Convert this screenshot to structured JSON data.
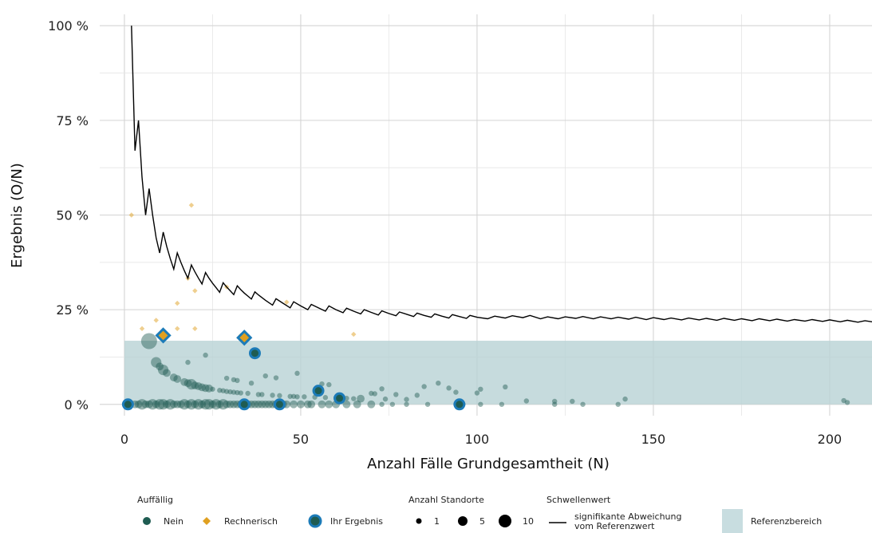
{
  "chart_data": {
    "type": "scatter",
    "xlabel": "Anzahl Fälle Grundgesamtheit (N)",
    "ylabel": "Ergebnis (O/N)",
    "xlim": [
      -7,
      212
    ],
    "ylim": [
      -3,
      103
    ],
    "x_ticks": [
      0,
      50,
      100,
      150,
      200
    ],
    "x_tick_labels": [
      "0",
      "50",
      "100",
      "150",
      "200"
    ],
    "y_ticks": [
      0,
      25,
      50,
      75,
      100
    ],
    "y_tick_labels": [
      "0 %",
      "25 %",
      "50 %",
      "75 %",
      "100 %"
    ],
    "grid": true,
    "reference_range": {
      "label": "Referenzbereich",
      "ymin": 0,
      "ymax": 16.8
    },
    "threshold_line": {
      "label": "signifikante Abweichung vom Referenzwert",
      "points": [
        [
          2,
          100
        ],
        [
          3,
          67
        ],
        [
          4,
          75
        ],
        [
          5,
          60
        ],
        [
          6,
          50
        ],
        [
          7,
          57
        ],
        [
          8,
          50
        ],
        [
          9,
          44
        ],
        [
          10,
          40
        ],
        [
          11,
          45.5
        ],
        [
          12,
          41.7
        ],
        [
          13,
          38.5
        ],
        [
          14,
          35.7
        ],
        [
          15,
          40
        ],
        [
          16,
          37.5
        ],
        [
          17,
          35.3
        ],
        [
          18,
          33.3
        ],
        [
          19,
          36.8
        ],
        [
          20,
          35
        ],
        [
          21,
          33.3
        ],
        [
          22,
          31.8
        ],
        [
          23,
          34.8
        ],
        [
          24,
          33.3
        ],
        [
          25,
          32
        ],
        [
          26,
          30.8
        ],
        [
          27,
          29.6
        ],
        [
          28,
          32.1
        ],
        [
          29,
          31
        ],
        [
          30,
          30
        ],
        [
          31,
          29
        ],
        [
          32,
          31.3
        ],
        [
          33,
          30.3
        ],
        [
          34,
          29.4
        ],
        [
          35,
          28.6
        ],
        [
          36,
          27.8
        ],
        [
          37,
          29.7
        ],
        [
          38,
          28.9
        ],
        [
          40,
          27.5
        ],
        [
          42,
          26.2
        ],
        [
          43,
          27.9
        ],
        [
          45,
          26.7
        ],
        [
          47,
          25.5
        ],
        [
          48,
          27.1
        ],
        [
          50,
          26
        ],
        [
          52,
          25
        ],
        [
          53,
          26.4
        ],
        [
          55,
          25.5
        ],
        [
          57,
          24.6
        ],
        [
          58,
          26
        ],
        [
          60,
          25
        ],
        [
          62,
          24.2
        ],
        [
          63,
          25.4
        ],
        [
          65,
          24.6
        ],
        [
          67,
          23.9
        ],
        [
          68,
          25
        ],
        [
          70,
          24.3
        ],
        [
          72,
          23.6
        ],
        [
          73,
          24.7
        ],
        [
          75,
          24
        ],
        [
          77,
          23.4
        ],
        [
          78,
          24.4
        ],
        [
          80,
          23.8
        ],
        [
          82,
          23.2
        ],
        [
          83,
          24.1
        ],
        [
          85,
          23.5
        ],
        [
          87,
          23
        ],
        [
          88,
          23.9
        ],
        [
          90,
          23.3
        ],
        [
          92,
          22.8
        ],
        [
          93,
          23.7
        ],
        [
          95,
          23.2
        ],
        [
          97,
          22.7
        ],
        [
          98,
          23.5
        ],
        [
          100,
          23
        ],
        [
          103,
          22.6
        ],
        [
          105,
          23.3
        ],
        [
          108,
          22.8
        ],
        [
          110,
          23.4
        ],
        [
          113,
          22.9
        ],
        [
          115,
          23.5
        ],
        [
          118,
          22.6
        ],
        [
          120,
          23.1
        ],
        [
          123,
          22.6
        ],
        [
          125,
          23.1
        ],
        [
          128,
          22.7
        ],
        [
          130,
          23.2
        ],
        [
          133,
          22.6
        ],
        [
          135,
          23.1
        ],
        [
          138,
          22.6
        ],
        [
          140,
          23
        ],
        [
          143,
          22.5
        ],
        [
          145,
          23
        ],
        [
          148,
          22.4
        ],
        [
          150,
          22.9
        ],
        [
          153,
          22.4
        ],
        [
          155,
          22.8
        ],
        [
          158,
          22.3
        ],
        [
          160,
          22.8
        ],
        [
          163,
          22.3
        ],
        [
          165,
          22.7
        ],
        [
          168,
          22.2
        ],
        [
          170,
          22.7
        ],
        [
          173,
          22.2
        ],
        [
          175,
          22.6
        ],
        [
          178,
          22.1
        ],
        [
          180,
          22.6
        ],
        [
          183,
          22.1
        ],
        [
          185,
          22.5
        ],
        [
          188,
          22
        ],
        [
          190,
          22.4
        ],
        [
          193,
          22
        ],
        [
          195,
          22.4
        ],
        [
          198,
          21.9
        ],
        [
          200,
          22.3
        ],
        [
          203,
          21.8
        ],
        [
          205,
          22.2
        ],
        [
          208,
          21.7
        ],
        [
          210,
          22.1
        ],
        [
          212,
          21.8
        ]
      ]
    },
    "series": [
      {
        "name": "Nein",
        "color": "#1f5c52",
        "points": [
          [
            1,
            0,
            3
          ],
          [
            3,
            0,
            2
          ],
          [
            4,
            0,
            2
          ],
          [
            5,
            0,
            3
          ],
          [
            6,
            0,
            2
          ],
          [
            7,
            0,
            2
          ],
          [
            8,
            0,
            3
          ],
          [
            9,
            0,
            2
          ],
          [
            10,
            0,
            3
          ],
          [
            11,
            0,
            3
          ],
          [
            12,
            0,
            2
          ],
          [
            13,
            0,
            3
          ],
          [
            14,
            0,
            2
          ],
          [
            15,
            0,
            2
          ],
          [
            16,
            0,
            2
          ],
          [
            17,
            0,
            3
          ],
          [
            18,
            0,
            2
          ],
          [
            19,
            0,
            3
          ],
          [
            20,
            0,
            2
          ],
          [
            21,
            0,
            3
          ],
          [
            22,
            0,
            2
          ],
          [
            23,
            0,
            3
          ],
          [
            24,
            0,
            3
          ],
          [
            25,
            0,
            2
          ],
          [
            26,
            0,
            3
          ],
          [
            27,
            0,
            2
          ],
          [
            28,
            0,
            3
          ],
          [
            29,
            0,
            2
          ],
          [
            30,
            0,
            2
          ],
          [
            31,
            0,
            2
          ],
          [
            32,
            0,
            2
          ],
          [
            33,
            0,
            2
          ],
          [
            34,
            0,
            2
          ],
          [
            35,
            0,
            2
          ],
          [
            36,
            0,
            2
          ],
          [
            37,
            0,
            2
          ],
          [
            38,
            0,
            2
          ],
          [
            39,
            0,
            2
          ],
          [
            40,
            0,
            2
          ],
          [
            41,
            0,
            2
          ],
          [
            42,
            0,
            2
          ],
          [
            43,
            0,
            2
          ],
          [
            45,
            0,
            2
          ],
          [
            46,
            0,
            2
          ],
          [
            48,
            0,
            2
          ],
          [
            50,
            0,
            2
          ],
          [
            52,
            0,
            2
          ],
          [
            53,
            0,
            2
          ],
          [
            56,
            0,
            2
          ],
          [
            58,
            0,
            2
          ],
          [
            60,
            0,
            2
          ],
          [
            63,
            0,
            2
          ],
          [
            66,
            0,
            2
          ],
          [
            70,
            0,
            2
          ],
          [
            73,
            0,
            1
          ],
          [
            76,
            0,
            1
          ],
          [
            80,
            0,
            1
          ],
          [
            86,
            0,
            1
          ],
          [
            96,
            0,
            1
          ],
          [
            101,
            0,
            1
          ],
          [
            107,
            0,
            1
          ],
          [
            122,
            0,
            1
          ],
          [
            130,
            0,
            1
          ],
          [
            140,
            0,
            1
          ],
          [
            205,
            0.5,
            1
          ],
          [
            7,
            16.7,
            5
          ],
          [
            9,
            11.1,
            3
          ],
          [
            10,
            10,
            2
          ],
          [
            11,
            9.1,
            3
          ],
          [
            12,
            8.3,
            2
          ],
          [
            14,
            7.1,
            2
          ],
          [
            15,
            6.7,
            2
          ],
          [
            17,
            5.9,
            2
          ],
          [
            18,
            11.1,
            1
          ],
          [
            18,
            5.6,
            2
          ],
          [
            19,
            5.3,
            3
          ],
          [
            20,
            5,
            2
          ],
          [
            21,
            4.8,
            2
          ],
          [
            22,
            4.5,
            2
          ],
          [
            23,
            13,
            1
          ],
          [
            23,
            4.3,
            2
          ],
          [
            24,
            4.2,
            2
          ],
          [
            25,
            4,
            1
          ],
          [
            27,
            3.7,
            1
          ],
          [
            28,
            3.6,
            1
          ],
          [
            29,
            6.9,
            1
          ],
          [
            29,
            3.4,
            1
          ],
          [
            30,
            3.3,
            1
          ],
          [
            31,
            6.5,
            1
          ],
          [
            31,
            3.2,
            1
          ],
          [
            32,
            6.3,
            1
          ],
          [
            32,
            3.1,
            1
          ],
          [
            33,
            3,
            1
          ],
          [
            35,
            2.9,
            1
          ],
          [
            36,
            5.6,
            1
          ],
          [
            38,
            2.6,
            1
          ],
          [
            39,
            2.6,
            1
          ],
          [
            40,
            7.5,
            1
          ],
          [
            42,
            2.4,
            1
          ],
          [
            43,
            7,
            1
          ],
          [
            44,
            2.3,
            1
          ],
          [
            47,
            2.1,
            1
          ],
          [
            48,
            2.1,
            1
          ],
          [
            49,
            8.2,
            1
          ],
          [
            49,
            2,
            1
          ],
          [
            51,
            2,
            1
          ],
          [
            54,
            1.9,
            1
          ],
          [
            56,
            5.4,
            1
          ],
          [
            57,
            1.8,
            1
          ],
          [
            58,
            5.2,
            1
          ],
          [
            60,
            1.7,
            1
          ],
          [
            62,
            1.6,
            1
          ],
          [
            63,
            1.6,
            1
          ],
          [
            65,
            1.5,
            1
          ],
          [
            67,
            1.5,
            2
          ],
          [
            70,
            2.9,
            1
          ],
          [
            71,
            2.8,
            1
          ],
          [
            73,
            4.1,
            1
          ],
          [
            74,
            1.4,
            1
          ],
          [
            77,
            2.6,
            1
          ],
          [
            80,
            1.3,
            1
          ],
          [
            83,
            2.4,
            1
          ],
          [
            85,
            4.7,
            1
          ],
          [
            89,
            5.6,
            1
          ],
          [
            92,
            4.3,
            1
          ],
          [
            94,
            3.2,
            1
          ],
          [
            100,
            3,
            1
          ],
          [
            101,
            4,
            1
          ],
          [
            108,
            4.6,
            1
          ],
          [
            114,
            0.9,
            1
          ],
          [
            122,
            0.8,
            1
          ],
          [
            127,
            0.8,
            1
          ],
          [
            142,
            1.4,
            1
          ],
          [
            204,
            1,
            1
          ]
        ]
      },
      {
        "name": "Rechnerisch",
        "color": "#e0a020",
        "points": [
          [
            2,
            50
          ],
          [
            5,
            20
          ],
          [
            9,
            22.2
          ],
          [
            15,
            26.7
          ],
          [
            15,
            20
          ],
          [
            18,
            33.3
          ],
          [
            19,
            52.6
          ],
          [
            20,
            30
          ],
          [
            20,
            20
          ],
          [
            29,
            31
          ],
          [
            33,
            18.2
          ],
          [
            46,
            27
          ],
          [
            65,
            18.5
          ]
        ]
      },
      {
        "name": "Ihr Ergebnis",
        "color": "#1c7bb8",
        "points": [
          [
            1,
            0,
            "circle"
          ],
          [
            11,
            18.2,
            "diamond"
          ],
          [
            34,
            17.6,
            "diamond"
          ],
          [
            34,
            0,
            "circle"
          ],
          [
            37,
            13.5,
            "circle"
          ],
          [
            44,
            0,
            "circle"
          ],
          [
            55,
            3.6,
            "circle"
          ],
          [
            61,
            1.6,
            "circle"
          ],
          [
            95,
            0,
            "circle"
          ]
        ]
      }
    ],
    "legend": {
      "placement": "bottom",
      "auffaellig": {
        "title": "Auffällig",
        "items": [
          "Nein",
          "Rechnerisch",
          "Ihr Ergebnis"
        ]
      },
      "anzahl": {
        "title": "Anzahl Standorte",
        "items": [
          "1",
          "5",
          "10"
        ]
      },
      "schwellenwert": {
        "title": "Schwellenwert",
        "line1": "signifikante Abweichung",
        "line2": "vom Referenzwert"
      },
      "referenz": "Referenzbereich"
    }
  }
}
